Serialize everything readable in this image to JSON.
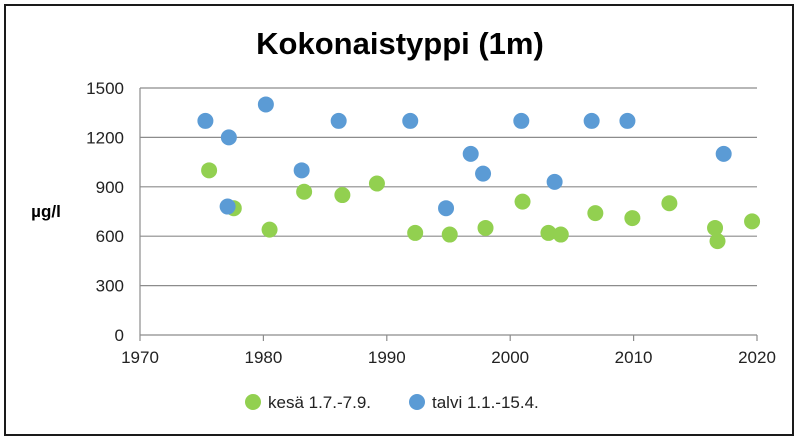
{
  "chart_data": {
    "type": "scatter",
    "title": "Kokonaistyppi (1m)",
    "xlabel": "",
    "ylabel": "µg/l",
    "xlim": [
      1970,
      2020
    ],
    "ylim": [
      0,
      1500
    ],
    "x_ticks": [
      "1970",
      "1980",
      "1990",
      "2000",
      "2010",
      "2020"
    ],
    "y_ticks": [
      "0",
      "300",
      "600",
      "900",
      "1200",
      "1500"
    ],
    "grid": "horizontal",
    "legend_position": "bottom",
    "series": [
      {
        "name": "kesä 1.7.-7.9.",
        "color": "#92d050",
        "points": [
          [
            1975.6,
            1000
          ],
          [
            1977.6,
            770
          ],
          [
            1980.5,
            640
          ],
          [
            1983.3,
            870
          ],
          [
            1986.4,
            850
          ],
          [
            1989.2,
            920
          ],
          [
            1992.3,
            620
          ],
          [
            1995.1,
            610
          ],
          [
            1998.0,
            650
          ],
          [
            2001.0,
            810
          ],
          [
            2003.1,
            620
          ],
          [
            2004.1,
            610
          ],
          [
            2006.9,
            740
          ],
          [
            2009.9,
            710
          ],
          [
            2012.9,
            800
          ],
          [
            2016.6,
            650
          ],
          [
            2016.8,
            570
          ],
          [
            2019.6,
            690
          ]
        ]
      },
      {
        "name": "talvi 1.1.-15.4.",
        "color": "#5b9bd5",
        "points": [
          [
            1975.3,
            1300
          ],
          [
            1977.2,
            1200
          ],
          [
            1977.1,
            780
          ],
          [
            1980.2,
            1400
          ],
          [
            1983.1,
            1000
          ],
          [
            1986.1,
            1300
          ],
          [
            1991.9,
            1300
          ],
          [
            1994.8,
            770
          ],
          [
            1996.8,
            1100
          ],
          [
            1997.8,
            980
          ],
          [
            2000.9,
            1300
          ],
          [
            2003.6,
            930
          ],
          [
            2006.6,
            1300
          ],
          [
            2009.5,
            1300
          ],
          [
            2017.3,
            1100
          ]
        ]
      }
    ]
  }
}
